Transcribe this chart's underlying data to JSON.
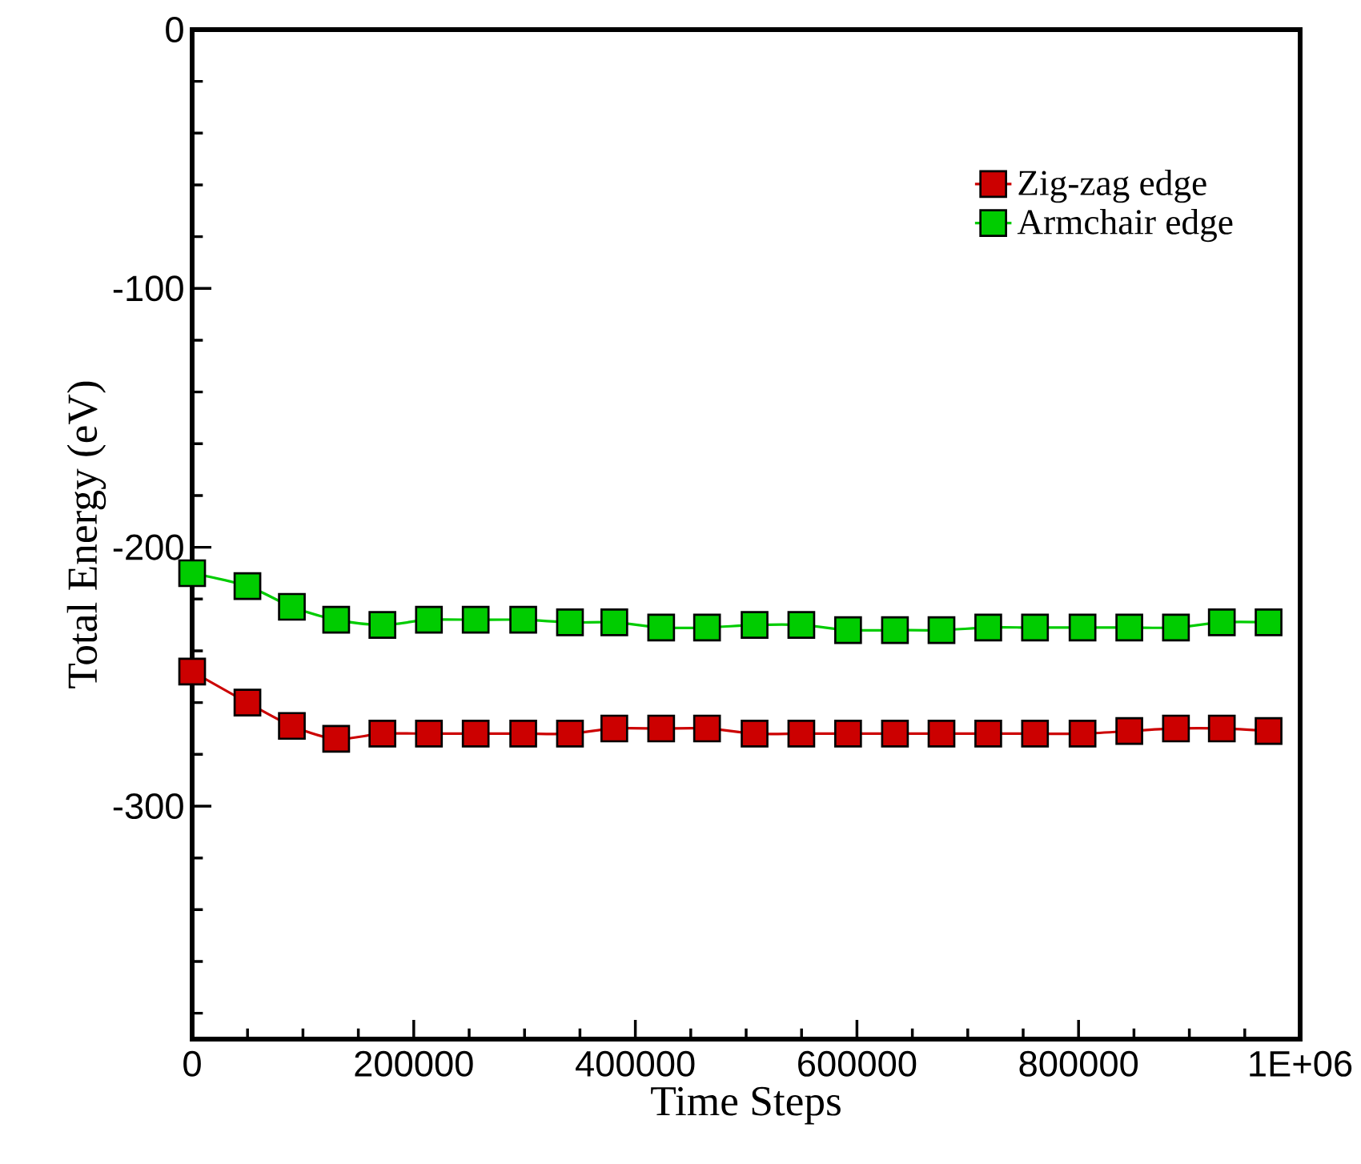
{
  "chart_data": {
    "type": "line",
    "xlabel": "Time Steps",
    "ylabel": "Total Energy (eV)",
    "x": [
      0,
      49900,
      90000,
      130000,
      171700,
      213700,
      255900,
      298800,
      341000,
      381000,
      423300,
      464700,
      507600,
      549800,
      592000,
      634300,
      676300,
      718500,
      760700,
      803600,
      845800,
      887900,
      929300,
      971500
    ],
    "series": [
      {
        "name": "Zig-zag edge",
        "color": "#cc0000",
        "values": [
          -248,
          -260,
          -269,
          -274,
          -272,
          -272,
          -272,
          -272,
          -272,
          -270,
          -270,
          -270,
          -272,
          -272,
          -272,
          -272,
          -272,
          -272,
          -272,
          -272,
          -271,
          -270,
          -270,
          -271
        ]
      },
      {
        "name": "Armchair edge",
        "color": "#00cc00",
        "values": [
          -210,
          -215,
          -223,
          -228,
          -230,
          -228,
          -228,
          -228,
          -229,
          -229,
          -231,
          -231,
          -230,
          -230,
          -232,
          -232,
          -232,
          -231,
          -231,
          -231,
          -231,
          -231,
          -229,
          -229
        ]
      }
    ],
    "xlim": [
      0,
      1000000
    ],
    "ylim": [
      -390,
      0
    ],
    "xticks": [
      0,
      {
        "value": 50000,
        "label": null
      },
      {
        "value": 100000,
        "label": null
      },
      {
        "value": 150000,
        "label": null
      },
      200000,
      {
        "value": 250000,
        "label": null
      },
      {
        "value": 300000,
        "label": null
      },
      {
        "value": 350000,
        "label": null
      },
      400000,
      {
        "value": 450000,
        "label": null
      },
      {
        "value": 500000,
        "label": null
      },
      {
        "value": 550000,
        "label": null
      },
      600000,
      {
        "value": 650000,
        "label": null
      },
      {
        "value": 700000,
        "label": null
      },
      {
        "value": 750000,
        "label": null
      },
      800000,
      {
        "value": 850000,
        "label": null
      },
      {
        "value": 900000,
        "label": null
      },
      {
        "value": 950000,
        "label": null
      },
      {
        "value": 1000000,
        "label": "1E+06"
      }
    ],
    "yticks": [
      {
        "value": -380,
        "label": null
      },
      {
        "value": -360,
        "label": null
      },
      {
        "value": -340,
        "label": null
      },
      {
        "value": -320,
        "label": null
      },
      -300,
      {
        "value": -280,
        "label": null
      },
      {
        "value": -260,
        "label": null
      },
      {
        "value": -240,
        "label": null
      },
      {
        "value": -220,
        "label": null
      },
      -200,
      {
        "value": -180,
        "label": null
      },
      {
        "value": -160,
        "label": null
      },
      {
        "value": -140,
        "label": null
      },
      {
        "value": -120,
        "label": null
      },
      -100,
      {
        "value": -80,
        "label": null
      },
      {
        "value": -60,
        "label": null
      },
      {
        "value": -40,
        "label": null
      },
      {
        "value": -20,
        "label": null
      },
      0
    ],
    "grid": false,
    "legend": "top right",
    "marker": "square",
    "line_style": "solid"
  }
}
